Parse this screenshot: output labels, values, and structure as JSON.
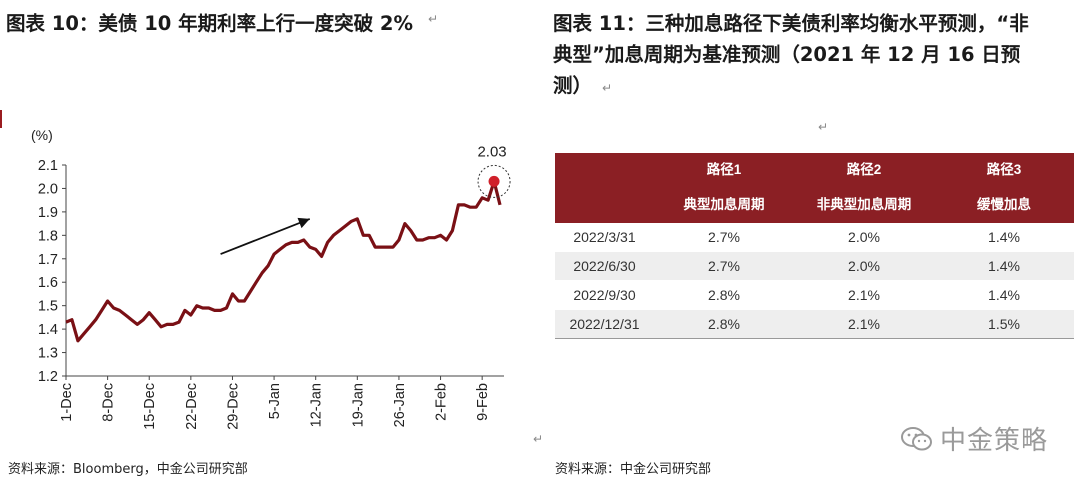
{
  "left": {
    "title": "图表 10：美债 10 年期利率上行一度突破 2%",
    "source": "资料来源：Bloomberg，中金公司研究部"
  },
  "right": {
    "title_line1": "图表 11：三种加息路径下美债利率均衡水平预测，“非",
    "title_line2": "典型”加息周期为基准预测（2021 年 12 月 16 日预",
    "title_line3": "测）",
    "source": "资料来源：中金公司研究部",
    "table": {
      "header_row1": [
        "",
        "路径1",
        "路径2",
        "路径3"
      ],
      "header_row2": [
        "",
        "典型加息周期",
        "非典型加息周期",
        "缓慢加息"
      ],
      "rows": [
        [
          "2022/3/31",
          "2.7%",
          "2.0%",
          "1.4%"
        ],
        [
          "2022/6/30",
          "2.7%",
          "2.0%",
          "1.4%"
        ],
        [
          "2022/9/30",
          "2.8%",
          "2.1%",
          "1.4%"
        ],
        [
          "2022/12/31",
          "2.8%",
          "2.1%",
          "1.5%"
        ]
      ]
    }
  },
  "watermark": {
    "text": "中金策略",
    "icon": "wechat-icon"
  },
  "colors": {
    "line": "#7a1015",
    "highlight": "#d0202a",
    "header_bg": "#8b1f24"
  },
  "chart_data": {
    "type": "line",
    "y_unit": "(%)",
    "ylim": [
      1.2,
      2.1
    ],
    "yticks": [
      2.1,
      2.0,
      1.9,
      1.8,
      1.7,
      1.6,
      1.5,
      1.4,
      1.3,
      1.2
    ],
    "ytick_labels": [
      "2.1",
      "2.0",
      "1.9",
      "1.8",
      "1.7",
      "1.6",
      "1.5",
      "1.4",
      "1.3",
      "1.2"
    ],
    "xtick_labels": [
      "1-Dec",
      "8-Dec",
      "15-Dec",
      "22-Dec",
      "29-Dec",
      "5-Jan",
      "12-Jan",
      "19-Jan",
      "26-Jan",
      "2-Feb",
      "9-Feb"
    ],
    "xtick_days": [
      0,
      7,
      14,
      21,
      28,
      35,
      42,
      49,
      56,
      63,
      70
    ],
    "grid": false,
    "series": [
      {
        "points": [
          [
            0,
            1.43
          ],
          [
            1,
            1.44
          ],
          [
            2,
            1.35
          ],
          [
            3,
            1.38
          ],
          [
            4,
            1.41
          ],
          [
            5,
            1.44
          ],
          [
            6,
            1.48
          ],
          [
            7,
            1.52
          ],
          [
            8,
            1.49
          ],
          [
            9,
            1.48
          ],
          [
            10,
            1.46
          ],
          [
            11,
            1.44
          ],
          [
            12,
            1.42
          ],
          [
            13,
            1.44
          ],
          [
            14,
            1.47
          ],
          [
            15,
            1.44
          ],
          [
            16,
            1.41
          ],
          [
            17,
            1.42
          ],
          [
            18,
            1.42
          ],
          [
            19,
            1.43
          ],
          [
            20,
            1.48
          ],
          [
            21,
            1.46
          ],
          [
            22,
            1.5
          ],
          [
            23,
            1.49
          ],
          [
            24,
            1.49
          ],
          [
            25,
            1.48
          ],
          [
            26,
            1.48
          ],
          [
            27,
            1.49
          ],
          [
            28,
            1.55
          ],
          [
            29,
            1.52
          ],
          [
            30,
            1.52
          ],
          [
            31,
            1.56
          ],
          [
            32,
            1.6
          ],
          [
            33,
            1.64
          ],
          [
            34,
            1.67
          ],
          [
            35,
            1.72
          ],
          [
            36,
            1.74
          ],
          [
            37,
            1.76
          ],
          [
            38,
            1.77
          ],
          [
            39,
            1.77
          ],
          [
            40,
            1.78
          ],
          [
            41,
            1.75
          ],
          [
            42,
            1.74
          ],
          [
            43,
            1.71
          ],
          [
            44,
            1.77
          ],
          [
            45,
            1.8
          ],
          [
            46,
            1.82
          ],
          [
            47,
            1.84
          ],
          [
            48,
            1.86
          ],
          [
            49,
            1.87
          ],
          [
            50,
            1.8
          ],
          [
            51,
            1.8
          ],
          [
            52,
            1.75
          ],
          [
            53,
            1.75
          ],
          [
            54,
            1.75
          ],
          [
            55,
            1.75
          ],
          [
            56,
            1.78
          ],
          [
            57,
            1.85
          ],
          [
            58,
            1.82
          ],
          [
            59,
            1.78
          ],
          [
            60,
            1.78
          ],
          [
            61,
            1.79
          ],
          [
            62,
            1.79
          ],
          [
            63,
            1.8
          ],
          [
            64,
            1.78
          ],
          [
            65,
            1.82
          ],
          [
            66,
            1.93
          ],
          [
            67,
            1.93
          ],
          [
            68,
            1.92
          ],
          [
            69,
            1.92
          ],
          [
            70,
            1.96
          ],
          [
            71,
            1.95
          ],
          [
            72,
            2.03
          ],
          [
            73,
            1.93
          ]
        ]
      }
    ],
    "annotations": [
      {
        "label": "2.03",
        "x": 72,
        "y": 2.03,
        "type": "highlight-circle"
      },
      {
        "type": "arrow",
        "from": [
          26,
          1.72
        ],
        "to": [
          41,
          1.87
        ]
      }
    ]
  }
}
